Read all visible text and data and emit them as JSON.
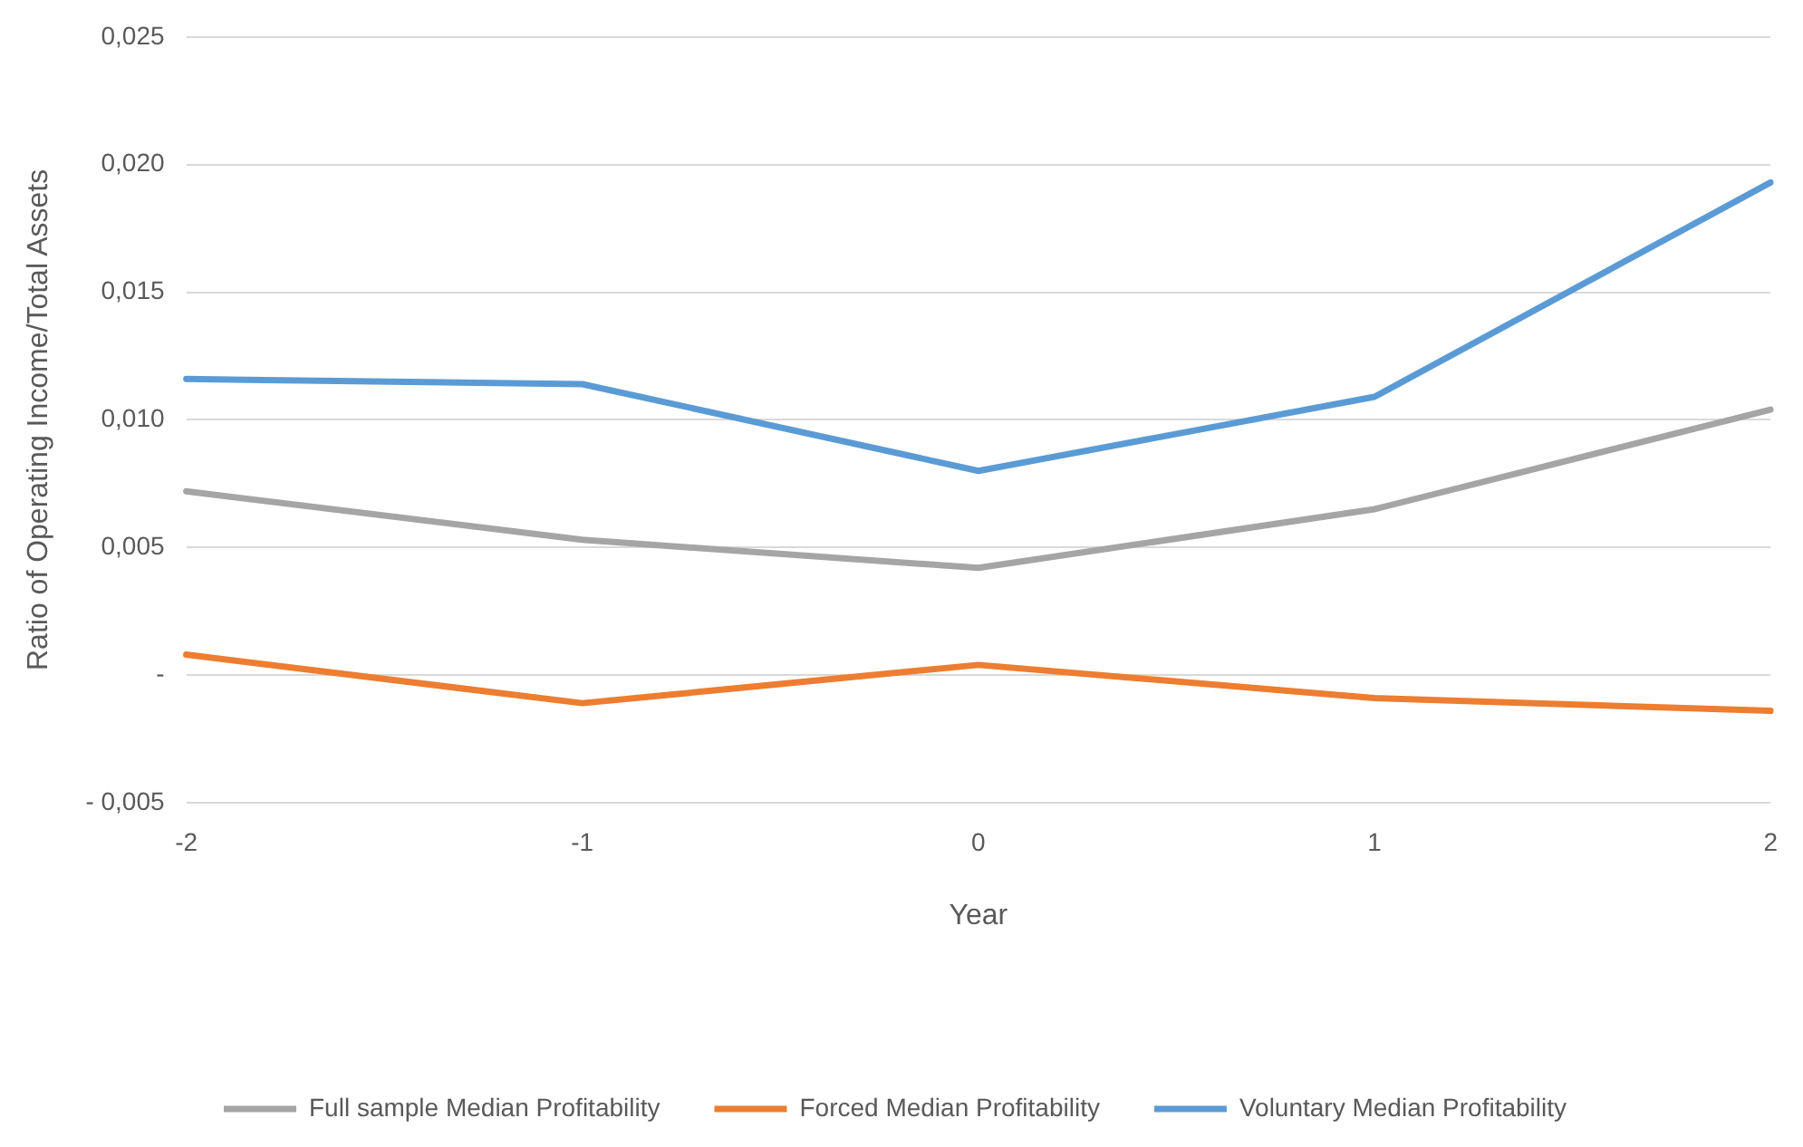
{
  "chart_data": {
    "type": "line",
    "xlabel": "Year",
    "ylabel": "Ratio of Operating Income/Total Assets",
    "categories": [
      "-2",
      "-1",
      "0",
      "1",
      "2"
    ],
    "series": [
      {
        "name": "Full sample Median Profitability",
        "color": "#a5a5a5",
        "values": [
          0.0072,
          0.0053,
          0.0042,
          0.0065,
          0.0104
        ]
      },
      {
        "name": "Forced Median Profitability",
        "color": "#ed7d31",
        "values": [
          0.0008,
          -0.0011,
          0.0004,
          -0.0009,
          -0.0014
        ]
      },
      {
        "name": "Voluntary Median Profitability",
        "color": "#5b9bd5",
        "values": [
          0.0116,
          0.0114,
          0.008,
          0.0109,
          0.0193
        ]
      }
    ],
    "ylim": [
      -0.005,
      0.025
    ],
    "yticks": [
      {
        "value": -0.005,
        "label": "- 0,005"
      },
      {
        "value": 0,
        "label": "-"
      },
      {
        "value": 0.005,
        "label": "0,005"
      },
      {
        "value": 0.01,
        "label": "0,010"
      },
      {
        "value": 0.015,
        "label": "0,015"
      },
      {
        "value": 0.02,
        "label": "0,020"
      },
      {
        "value": 0.025,
        "label": "0,025"
      }
    ],
    "grid": "y",
    "legend": "bottom",
    "marker": "none",
    "line_style": "solid"
  }
}
